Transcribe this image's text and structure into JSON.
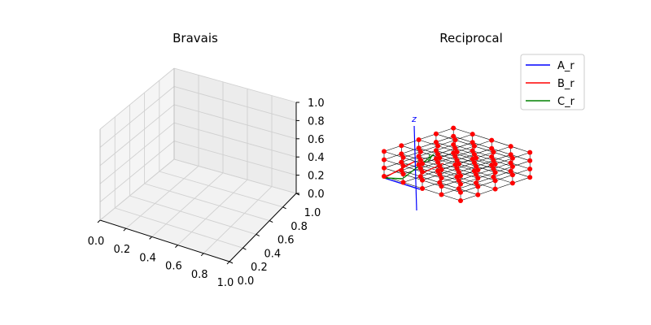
{
  "chart_data": [
    {
      "type": "scatter",
      "projection": "3d",
      "title": "Bravais",
      "xlim": [
        0,
        1
      ],
      "ylim": [
        0,
        1
      ],
      "zlim": [
        0,
        1
      ],
      "x_ticks": [
        "0.0",
        "0.2",
        "0.4",
        "0.6",
        "0.8",
        "1.0"
      ],
      "y_ticks": [
        "0.0",
        "0.2",
        "0.4",
        "0.6",
        "0.8",
        "1.0"
      ],
      "z_ticks": [
        "0.0",
        "0.2",
        "0.4",
        "0.6",
        "0.8",
        "1.0"
      ],
      "grid": true,
      "series": []
    },
    {
      "type": "scatter",
      "projection": "3d",
      "title": "Reciprocal",
      "axes_visible": false,
      "grid": false,
      "lattice": {
        "nx": 5,
        "ny": 5,
        "nz": 4,
        "point_color": "#ff0000",
        "line_color": "#000000"
      },
      "basis_vectors": [
        {
          "name": "A_r",
          "color": "#0000ff"
        },
        {
          "name": "B_r",
          "color": "#ff0000"
        },
        {
          "name": "C_r",
          "color": "#008000"
        }
      ],
      "axis_letters": [
        {
          "text": "z",
          "color": "#0000ff"
        },
        {
          "text": "y",
          "color": "#008000"
        },
        {
          "text": "x",
          "color": "#ff0000"
        }
      ],
      "legend": {
        "position": "top-right",
        "entries": [
          "A_r",
          "B_r",
          "C_r"
        ]
      }
    }
  ]
}
